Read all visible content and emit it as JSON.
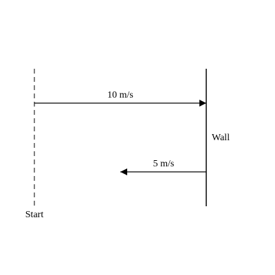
{
  "diagram": {
    "start_label": "Start",
    "wall_label": "Wall",
    "incoming_speed_label": "10 m/s",
    "outgoing_speed_label": "5 m/s"
  },
  "colors": {
    "ink": "#000000",
    "start_line": "#555555",
    "background": "#ffffff"
  }
}
